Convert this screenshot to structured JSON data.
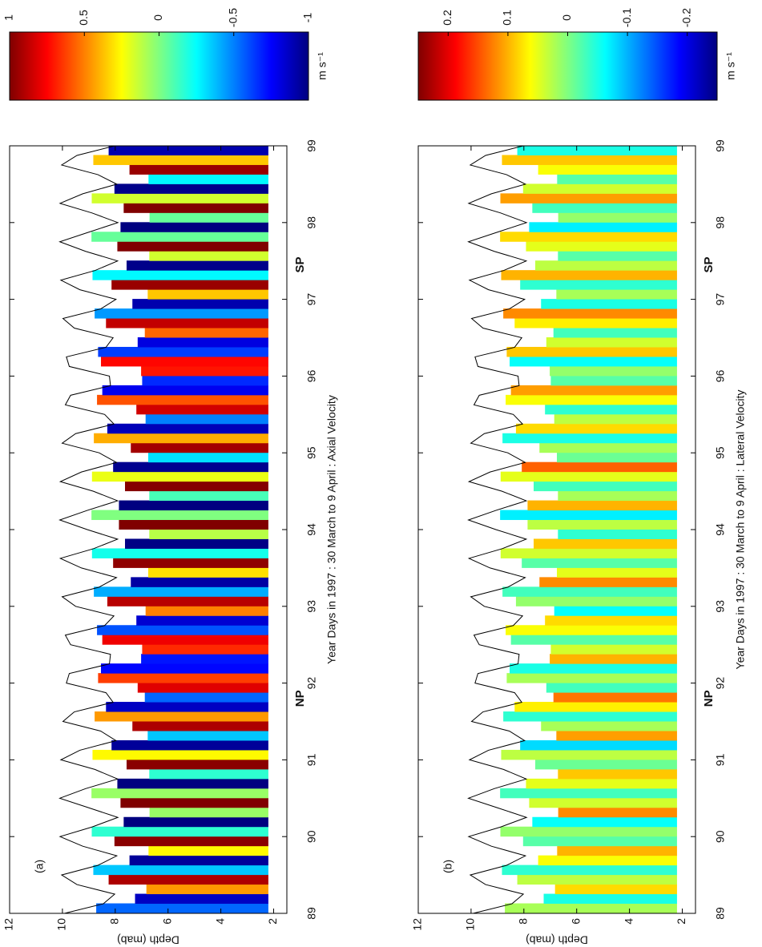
{
  "chart_data": [
    {
      "type": "heatmap",
      "panel_label": "(a)",
      "xlabel": "Year Days in 1997 : 30 March to 9 April : Axial Velocity",
      "ylabel": "Depth (mab)",
      "xlim": [
        89,
        99
      ],
      "ylim": [
        1.5,
        12
      ],
      "xticks": [
        89,
        90,
        91,
        92,
        93,
        94,
        95,
        96,
        97,
        98,
        99
      ],
      "yticks": [
        2,
        4,
        6,
        8,
        10,
        12
      ],
      "clim": [
        -1,
        1
      ],
      "cticks": [
        1,
        0.5,
        0,
        -0.5,
        -1
      ],
      "colorbar_label": "m s⁻¹",
      "colormap": "jet",
      "line_color": "#000000",
      "data_bottom": 2.2,
      "x": [
        89,
        89.125,
        89.25,
        89.375,
        89.5,
        89.625,
        89.75,
        89.875,
        90,
        90.125,
        90.25,
        90.375,
        90.5,
        90.625,
        90.75,
        90.875,
        91,
        91.125,
        91.25,
        91.375,
        91.5,
        91.625,
        91.75,
        91.875,
        92,
        92.125,
        92.25,
        92.375,
        92.5,
        92.625,
        92.75,
        92.875,
        93,
        93.125,
        93.25,
        93.375,
        93.5,
        93.625,
        93.75,
        93.875,
        94,
        94.125,
        94.25,
        94.375,
        94.5,
        94.625,
        94.75,
        94.875,
        95,
        95.125,
        95.25,
        95.375,
        95.5,
        95.625,
        95.75,
        95.875,
        96,
        96.125,
        96.25,
        96.375,
        96.5,
        96.625,
        96.75,
        96.875,
        97,
        97.125,
        97.25,
        97.375,
        97.5,
        97.625,
        97.75,
        97.875,
        98,
        98.125,
        98.25,
        98.375,
        98.5,
        98.625,
        98.75,
        98.875,
        99
      ],
      "surface": [
        9.92,
        8.45,
        8.02,
        9.45,
        10.03,
        8.66,
        7.94,
        9.23,
        10.09,
        8.88,
        7.9,
        9.0,
        10.1,
        9.12,
        7.91,
        8.77,
        10.06,
        9.34,
        7.97,
        8.55,
        9.98,
        9.55,
        8.08,
        8.35,
        9.85,
        9.74,
        8.22,
        8.18,
        9.69,
        9.89,
        8.4,
        8.05,
        9.5,
        10.01,
        8.61,
        7.95,
        9.28,
        10.08,
        8.83,
        7.91,
        9.06,
        10.1,
        9.06,
        7.91,
        8.83,
        10.08,
        9.28,
        7.95,
        8.61,
        10.01,
        9.5,
        8.05,
        8.4,
        9.89,
        9.69,
        8.18,
        8.22,
        9.74,
        9.85,
        8.35,
        8.08,
        9.55,
        9.98,
        8.55,
        7.97,
        9.34,
        10.06,
        8.77,
        7.91,
        9.12,
        10.1,
        9.0,
        7.9,
        8.88,
        10.09,
        9.23,
        7.94,
        8.66,
        10.03,
        9.45,
        8.02
      ],
      "values": [
        -0.55,
        -0.87,
        0.45,
        0.91,
        -0.36,
        -0.95,
        0.26,
        0.98,
        -0.16,
        -1.0,
        0.05,
        1.0,
        0.05,
        -1.0,
        -0.16,
        0.98,
        0.26,
        -0.95,
        -0.36,
        0.91,
        0.45,
        -0.87,
        -0.55,
        0.81,
        0.63,
        -0.74,
        -0.71,
        0.67,
        0.78,
        -0.59,
        -0.84,
        0.5,
        0.89,
        -0.41,
        -0.93,
        0.31,
        0.97,
        -0.21,
        -0.99,
        0.11,
        1.0,
        0,
        -1.0,
        -0.11,
        0.99,
        0.21,
        -0.97,
        -0.31,
        0.93,
        0.41,
        -0.89,
        -0.5,
        0.84,
        0.59,
        -0.78,
        -0.67,
        0.71,
        0.74,
        -0.63,
        -0.81,
        0.55,
        0.87,
        -0.45,
        -0.91,
        0.36,
        0.95,
        -0.26,
        -0.98,
        0.16,
        1.0,
        -0.05,
        -1.0,
        -0.05,
        1.0,
        0.16,
        -0.98,
        -0.26,
        0.95,
        0.36,
        -0.91,
        -0.45
      ],
      "annotations": [
        {
          "text": "NP",
          "x": 91.8,
          "color": "#2a8a5a"
        },
        {
          "text": "SP",
          "x": 97.45,
          "color": "#e0402a"
        }
      ]
    },
    {
      "type": "heatmap",
      "panel_label": "(b)",
      "xlabel": "Year Days in 1997 : 30 March to 9 April : Lateral Velocity",
      "ylabel": "Depth (mab)",
      "xlim": [
        89,
        99
      ],
      "ylim": [
        1.5,
        12
      ],
      "xticks": [
        89,
        90,
        91,
        92,
        93,
        94,
        95,
        96,
        97,
        98,
        99
      ],
      "yticks": [
        2,
        4,
        6,
        8,
        10,
        12
      ],
      "clim": [
        -0.25,
        0.25
      ],
      "cticks": [
        0.2,
        0.1,
        0,
        -0.1,
        -0.2
      ],
      "colorbar_label": "m s⁻¹",
      "colormap": "jet",
      "line_color": "#000000",
      "data_bottom": 2.2,
      "x": [
        89,
        89.125,
        89.25,
        89.375,
        89.5,
        89.625,
        89.75,
        89.875,
        90,
        90.125,
        90.25,
        90.375,
        90.5,
        90.625,
        90.75,
        90.875,
        91,
        91.125,
        91.25,
        91.375,
        91.5,
        91.625,
        91.75,
        91.875,
        92,
        92.125,
        92.25,
        92.375,
        92.5,
        92.625,
        92.75,
        92.875,
        93,
        93.125,
        93.25,
        93.375,
        93.5,
        93.625,
        93.75,
        93.875,
        94,
        94.125,
        94.25,
        94.375,
        94.5,
        94.625,
        94.75,
        94.875,
        95,
        95.125,
        95.25,
        95.375,
        95.5,
        95.625,
        95.75,
        95.875,
        96,
        96.125,
        96.25,
        96.375,
        96.5,
        96.625,
        96.75,
        96.875,
        97,
        97.125,
        97.25,
        97.375,
        97.5,
        97.625,
        97.75,
        97.875,
        98,
        98.125,
        98.25,
        98.375,
        98.5,
        98.625,
        98.75,
        98.875,
        99
      ],
      "surface": [
        9.92,
        8.45,
        8.02,
        9.45,
        10.03,
        8.66,
        7.94,
        9.23,
        10.09,
        8.88,
        7.9,
        9.0,
        10.1,
        9.12,
        7.91,
        8.77,
        10.06,
        9.34,
        7.97,
        8.55,
        9.98,
        9.55,
        8.08,
        8.35,
        9.85,
        9.74,
        8.22,
        8.18,
        9.69,
        9.89,
        8.4,
        8.05,
        9.5,
        10.01,
        8.61,
        7.95,
        9.28,
        10.08,
        8.83,
        7.91,
        9.06,
        10.1,
        9.06,
        7.91,
        8.83,
        10.08,
        9.28,
        7.95,
        8.61,
        10.01,
        9.5,
        8.05,
        8.4,
        9.89,
        9.69,
        8.18,
        8.22,
        9.74,
        9.85,
        8.35,
        8.08,
        9.55,
        9.98,
        8.55,
        7.97,
        9.34,
        10.06,
        8.77,
        7.91,
        9.12,
        10.1,
        9.0,
        7.9,
        8.88,
        10.09,
        9.23,
        7.94,
        8.66,
        10.03,
        9.45,
        8.02
      ],
      "values": [
        0.02,
        -0.05,
        0.08,
        0.03,
        -0.04,
        0.06,
        0.1,
        -0.02,
        0.01,
        -0.06,
        0.12,
        0.04,
        -0.03,
        0.05,
        0.09,
        -0.01,
        0.03,
        -0.08,
        0.11,
        0.02,
        -0.04,
        0.07,
        0.13,
        -0.03,
        0.02,
        -0.05,
        0.1,
        0.04,
        -0.02,
        0.06,
        0.08,
        -0.06,
        0.01,
        -0.03,
        0.12,
        0.05,
        -0.02,
        0.04,
        0.09,
        -0.04,
        0.03,
        -0.07,
        0.1,
        0.02,
        -0.03,
        0.05,
        0.14,
        -0.01,
        0.02,
        -0.05,
        0.08,
        0.03,
        -0.04,
        0.06,
        0.11,
        -0.02,
        0.01,
        -0.06,
        0.09,
        0.04,
        -0.03,
        0.07,
        0.12,
        -0.05,
        0.02,
        -0.04,
        0.1,
        0.03,
        -0.02,
        0.05,
        0.08,
        -0.07,
        0.01,
        -0.03,
        0.11,
        0.04,
        -0.02,
        0.06,
        0.09,
        -0.05,
        0.03
      ],
      "annotations": [
        {
          "text": "NP",
          "x": 91.8,
          "color": "#2a8a5a"
        },
        {
          "text": "SP",
          "x": 97.45,
          "color": "#e0402a"
        }
      ]
    }
  ]
}
